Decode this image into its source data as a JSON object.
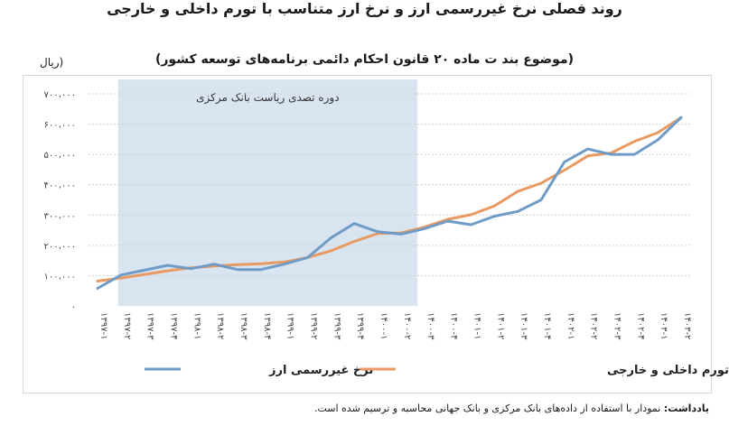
{
  "title": "روند فصلی نرخ غیررسمی ارز و نرخ ارز متناسب با تورم داخلی و خارجی",
  "subtitle": "(موضوع بند ت ماده ۲۰ قانون احکام دائمی برنامه‌های توسعه کشور)",
  "footnote": {
    "label": "یادداشت:",
    "text": "نمودار با استفاده از داده‌های بانک مرکزی و بانک جهانی محاسبه و ترسیم شده است."
  },
  "chart_data": {
    "type": "line",
    "ylabel": "(ریال",
    "ylim": [
      0,
      700000
    ],
    "yticks": [
      0,
      100000,
      200000,
      300000,
      400000,
      500000,
      600000,
      700000
    ],
    "ytick_labels": [
      "۰",
      "۱۰۰،۰۰۰",
      "۲۰۰،۰۰۰",
      "۳۰۰،۰۰۰",
      "۴۰۰،۰۰۰",
      "۵۰۰،۰۰۰",
      "۶۰۰،۰۰۰",
      "۷۰۰،۰۰۰"
    ],
    "categories": [
      "۱۳۹۷-۱",
      "۱۳۹۷-۲",
      "۱۳۹۷-۳",
      "۱۳۹۷-۴",
      "۱۳۹۸-۱",
      "۱۳۹۸-۲",
      "۱۳۹۸-۳",
      "۱۳۹۸-۴",
      "۱۳۹۹-۱",
      "۱۳۹۹-۲",
      "۱۳۹۹-۳",
      "۱۳۹۹-۴",
      "۱۴۰۰-۱",
      "۱۴۰۰-۲",
      "۱۴۰۰-۳",
      "۱۴۰۰-۴",
      "۱۴۰۱-۱",
      "۱۴۰۱-۲",
      "۱۴۰۱-۳",
      "۱۴۰۱-۴",
      "۱۴۰۲-۱",
      "۱۴۰۲-۲",
      "۱۴۰۲-۳",
      "۱۴۰۲-۴",
      "۱۴۰۳-۱",
      "۱۴۰۳-۲"
    ],
    "series": [
      {
        "name": "نرخ غیررسمی ارز",
        "color": "#6f9cc7",
        "values": [
          58000,
          102000,
          118000,
          134000,
          123000,
          138000,
          120000,
          120000,
          138000,
          160000,
          225000,
          272000,
          245000,
          237000,
          255000,
          280000,
          268000,
          296000,
          312000,
          350000,
          475000,
          518000,
          500000,
          500000,
          548000,
          622000
        ]
      },
      {
        "name": "نرخ ارز متناسب با تورم داخلی و خارجی",
        "color": "#e89a62",
        "values": [
          82000,
          92000,
          104000,
          116000,
          126000,
          132000,
          136000,
          139000,
          145000,
          160000,
          182000,
          213000,
          239000,
          241000,
          260000,
          286000,
          301000,
          330000,
          378000,
          405000,
          448000,
          495000,
          505000,
          543000,
          572000,
          622000
        ]
      }
    ],
    "shaded_region": {
      "label": "دوره تصدی ریاست بانک مرکزی",
      "color": "#d9e4f1",
      "from_index": 1,
      "to_index": 13
    },
    "grid": true,
    "legend": "bottom"
  }
}
